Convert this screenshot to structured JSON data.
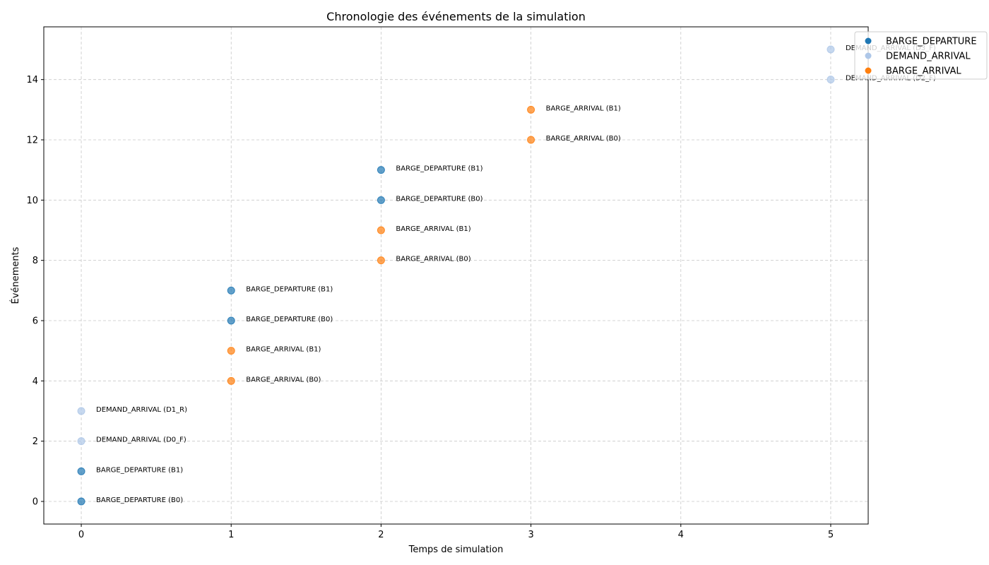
{
  "chart_data": {
    "type": "scatter",
    "title": "Chronologie des événements de la simulation",
    "xlabel": "Temps de simulation",
    "ylabel": "Événements",
    "xlim": [
      -0.25,
      5.25
    ],
    "ylim": [
      -0.75,
      15.75
    ],
    "xticks": [
      "0",
      "1",
      "2",
      "3",
      "4",
      "5"
    ],
    "yticks": [
      "0",
      "2",
      "4",
      "6",
      "8",
      "10",
      "12",
      "14"
    ],
    "grid": true,
    "legend_position": "top-right",
    "series": [
      {
        "name": "BARGE_DEPARTURE",
        "color": "#1f77b4"
      },
      {
        "name": "DEMAND_ARRIVAL",
        "color": "#aec7e8"
      },
      {
        "name": "BARGE_ARRIVAL",
        "color": "#ff7f0e"
      }
    ],
    "points": [
      {
        "x": 0,
        "y": 0,
        "series": "BARGE_DEPARTURE",
        "label": "BARGE_DEPARTURE (B0)"
      },
      {
        "x": 0,
        "y": 1,
        "series": "BARGE_DEPARTURE",
        "label": "BARGE_DEPARTURE (B1)"
      },
      {
        "x": 0,
        "y": 2,
        "series": "DEMAND_ARRIVAL",
        "label": "DEMAND_ARRIVAL (D0_F)"
      },
      {
        "x": 0,
        "y": 3,
        "series": "DEMAND_ARRIVAL",
        "label": "DEMAND_ARRIVAL (D1_R)"
      },
      {
        "x": 1,
        "y": 4,
        "series": "BARGE_ARRIVAL",
        "label": "BARGE_ARRIVAL (B0)"
      },
      {
        "x": 1,
        "y": 5,
        "series": "BARGE_ARRIVAL",
        "label": "BARGE_ARRIVAL (B1)"
      },
      {
        "x": 1,
        "y": 6,
        "series": "BARGE_DEPARTURE",
        "label": "BARGE_DEPARTURE (B0)"
      },
      {
        "x": 1,
        "y": 7,
        "series": "BARGE_DEPARTURE",
        "label": "BARGE_DEPARTURE (B1)"
      },
      {
        "x": 2,
        "y": 8,
        "series": "BARGE_ARRIVAL",
        "label": "BARGE_ARRIVAL (B0)"
      },
      {
        "x": 2,
        "y": 9,
        "series": "BARGE_ARRIVAL",
        "label": "BARGE_ARRIVAL (B1)"
      },
      {
        "x": 2,
        "y": 10,
        "series": "BARGE_DEPARTURE",
        "label": "BARGE_DEPARTURE (B0)"
      },
      {
        "x": 2,
        "y": 11,
        "series": "BARGE_DEPARTURE",
        "label": "BARGE_DEPARTURE (B1)"
      },
      {
        "x": 3,
        "y": 12,
        "series": "BARGE_ARRIVAL",
        "label": "BARGE_ARRIVAL (B0)"
      },
      {
        "x": 3,
        "y": 13,
        "series": "BARGE_ARRIVAL",
        "label": "BARGE_ARRIVAL (B1)"
      },
      {
        "x": 5,
        "y": 14,
        "series": "DEMAND_ARRIVAL",
        "label": "DEMAND_ARRIVAL (D2_F)"
      },
      {
        "x": 5,
        "y": 15,
        "series": "DEMAND_ARRIVAL",
        "label": "DEMAND_ARRIVAL (D3_F)"
      }
    ]
  }
}
